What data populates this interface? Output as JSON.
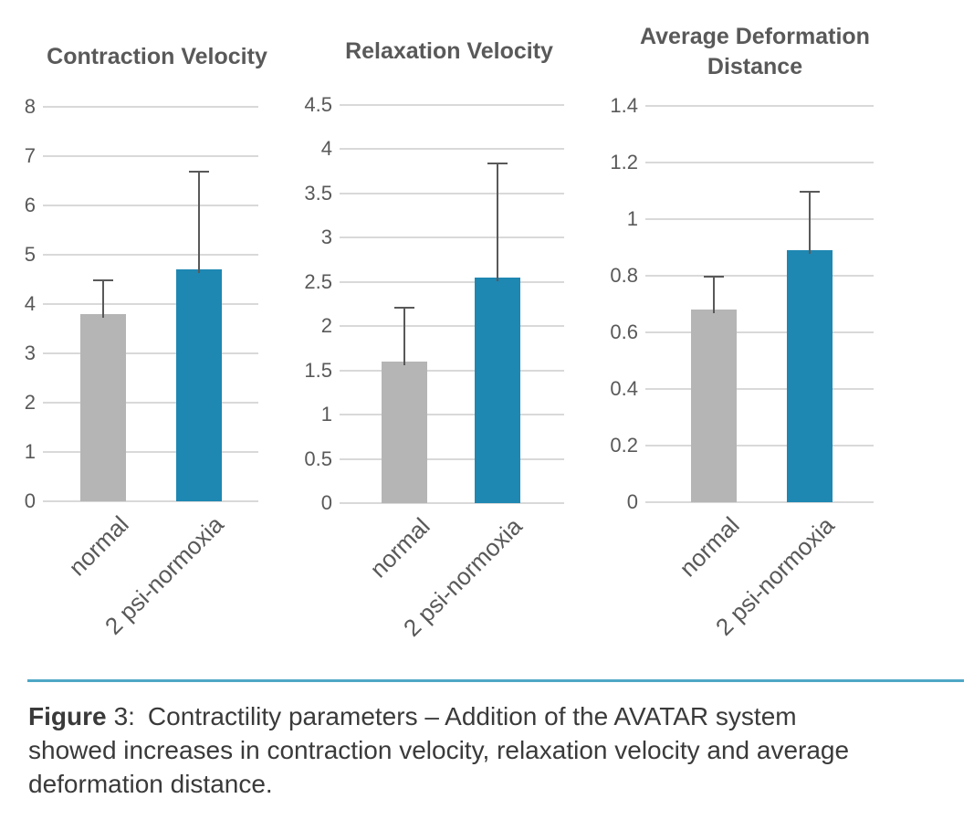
{
  "colors": {
    "bar_normal": "#b5b5b5",
    "bar_treatment": "#1e87b2",
    "gridline": "#d9d9d9",
    "axis_text": "#595959",
    "title_text": "#595959",
    "error_bar": "#595959",
    "divider": "#4ea7c6",
    "caption_text": "#3a3a3a"
  },
  "chart_data": [
    {
      "type": "bar",
      "title": "Contraction Velocity",
      "categories": [
        "normal",
        "2 psi-normoxia"
      ],
      "values": [
        3.8,
        4.7
      ],
      "errors_up": [
        0.7,
        2.0
      ],
      "ylim": [
        0,
        8
      ],
      "ytick_step": 1,
      "ytick_labels": [
        "0",
        "1",
        "2",
        "3",
        "4",
        "5",
        "6",
        "7",
        "8"
      ],
      "grid": true,
      "legend": "none",
      "bar_color_keys": [
        "bar_normal",
        "bar_treatment"
      ],
      "xlabel": "",
      "ylabel": ""
    },
    {
      "type": "bar",
      "title": "Relaxation Velocity",
      "categories": [
        "normal",
        "2 psi-normoxia"
      ],
      "values": [
        1.6,
        2.55
      ],
      "errors_up": [
        0.62,
        1.3
      ],
      "ylim": [
        0,
        4.5
      ],
      "ytick_step": 0.5,
      "ytick_labels": [
        "0",
        "0.5",
        "1",
        "1.5",
        "2",
        "2.5",
        "3",
        "3.5",
        "4",
        "4.5"
      ],
      "grid": true,
      "legend": "none",
      "bar_color_keys": [
        "bar_normal",
        "bar_treatment"
      ],
      "xlabel": "",
      "ylabel": ""
    },
    {
      "type": "bar",
      "title": "Average Deformation\nDistance",
      "categories": [
        "normal",
        "2 psi-normoxia"
      ],
      "values": [
        0.68,
        0.89
      ],
      "errors_up": [
        0.12,
        0.21
      ],
      "ylim": [
        0,
        1.4
      ],
      "ytick_step": 0.2,
      "ytick_labels": [
        "0",
        "0.2",
        "0.4",
        "0.6",
        "0.8",
        "1",
        "1.2",
        "1.4"
      ],
      "grid": true,
      "legend": "none",
      "bar_color_keys": [
        "bar_normal",
        "bar_treatment"
      ],
      "xlabel": "",
      "ylabel": ""
    }
  ],
  "caption": {
    "figure_label": "Figure",
    "figure_number": "3:",
    "line1": "Contractility parameters – Addition of the AVATAR system",
    "line2": "showed increases in contraction velocity, relaxation velocity and average",
    "line3": "deformation distance."
  }
}
